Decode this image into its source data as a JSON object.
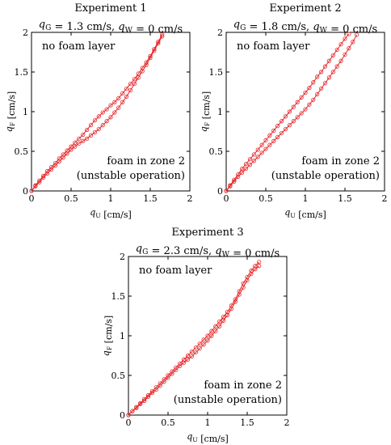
{
  "chart_data": [
    {
      "type": "line",
      "title": "Experiment 1",
      "subtitle": "q_G = 1.3 cm/s, q_W = 0 cm/s",
      "xlabel": "q_U [cm/s]",
      "ylabel": "q_F [cm/s]",
      "xlim": [
        0,
        2
      ],
      "ylim": [
        0,
        2
      ],
      "xticks": [
        "0",
        "0.5",
        "1",
        "1.5",
        "2"
      ],
      "yticks": [
        "0",
        "0.5",
        "1",
        "1.5",
        "2"
      ],
      "annotations": {
        "top": "no foam layer",
        "bottom_line1": "foam in zone 2",
        "bottom_line2": "(unstable operation)"
      },
      "series": [
        {
          "x": [
            0,
            0.05,
            0.1,
            0.15,
            0.2,
            0.25,
            0.3,
            0.35,
            0.4,
            0.45,
            0.5,
            0.55,
            0.6,
            0.65,
            0.7,
            0.75,
            0.8,
            0.85,
            0.9,
            0.95,
            1.0,
            1.05,
            1.1,
            1.15,
            1.2,
            1.25,
            1.3,
            1.35,
            1.4,
            1.45,
            1.5,
            1.55,
            1.6,
            1.65
          ],
          "y": [
            0,
            0.07,
            0.13,
            0.19,
            0.25,
            0.3,
            0.35,
            0.41,
            0.46,
            0.51,
            0.56,
            0.61,
            0.66,
            0.71,
            0.77,
            0.83,
            0.89,
            0.94,
            0.99,
            1.03,
            1.08,
            1.12,
            1.17,
            1.23,
            1.29,
            1.35,
            1.41,
            1.48,
            1.55,
            1.62,
            1.7,
            1.79,
            1.88,
            1.97
          ]
        },
        {
          "x": [
            0,
            0.05,
            0.1,
            0.15,
            0.2,
            0.25,
            0.3,
            0.35,
            0.4,
            0.45,
            0.5,
            0.55,
            0.6,
            0.65,
            0.7,
            0.75,
            0.8,
            0.85,
            0.9,
            0.95,
            1.0,
            1.05,
            1.1,
            1.15,
            1.2,
            1.25,
            1.3,
            1.35,
            1.4,
            1.45,
            1.5,
            1.55,
            1.6,
            1.65
          ],
          "y": [
            0,
            0.06,
            0.11,
            0.17,
            0.22,
            0.27,
            0.32,
            0.37,
            0.42,
            0.47,
            0.52,
            0.56,
            0.6,
            0.63,
            0.66,
            0.7,
            0.74,
            0.78,
            0.83,
            0.88,
            0.93,
            0.99,
            1.05,
            1.12,
            1.19,
            1.27,
            1.35,
            1.43,
            1.51,
            1.59,
            1.68,
            1.77,
            1.86,
            1.95
          ]
        }
      ]
    },
    {
      "type": "line",
      "title": "Experiment 2",
      "subtitle": "q_G = 1.8 cm/s, q_W = 0 cm/s",
      "xlabel": "q_U [cm/s]",
      "ylabel": "q_F [cm/s]",
      "xlim": [
        0,
        2
      ],
      "ylim": [
        0,
        2
      ],
      "xticks": [
        "0",
        "0.5",
        "1",
        "1.5",
        "2"
      ],
      "yticks": [
        "0",
        "0.5",
        "1",
        "1.5",
        "2"
      ],
      "annotations": {
        "top": "no foam layer",
        "bottom_line1": "foam in zone 2",
        "bottom_line2": "(unstable operation)"
      },
      "series": [
        {
          "x": [
            0,
            0.05,
            0.1,
            0.15,
            0.2,
            0.25,
            0.3,
            0.35,
            0.4,
            0.45,
            0.5,
            0.55,
            0.6,
            0.65,
            0.7,
            0.75,
            0.8,
            0.85,
            0.9,
            0.95,
            1.0,
            1.05,
            1.1,
            1.15,
            1.2,
            1.25,
            1.3,
            1.35,
            1.4,
            1.45,
            1.5,
            1.55
          ],
          "y": [
            0,
            0.07,
            0.14,
            0.21,
            0.28,
            0.34,
            0.4,
            0.46,
            0.52,
            0.58,
            0.64,
            0.7,
            0.76,
            0.82,
            0.88,
            0.94,
            1.0,
            1.06,
            1.12,
            1.18,
            1.24,
            1.3,
            1.37,
            1.44,
            1.5,
            1.57,
            1.64,
            1.71,
            1.78,
            1.85,
            1.92,
            1.98
          ]
        },
        {
          "x": [
            0,
            0.05,
            0.1,
            0.15,
            0.2,
            0.25,
            0.3,
            0.35,
            0.4,
            0.45,
            0.5,
            0.55,
            0.6,
            0.65,
            0.7,
            0.75,
            0.8,
            0.85,
            0.9,
            0.95,
            1.0,
            1.05,
            1.1,
            1.15,
            1.2,
            1.25,
            1.3,
            1.35,
            1.4,
            1.45,
            1.5,
            1.55,
            1.6,
            1.65
          ],
          "y": [
            0,
            0.06,
            0.12,
            0.18,
            0.23,
            0.28,
            0.33,
            0.38,
            0.43,
            0.48,
            0.53,
            0.58,
            0.63,
            0.68,
            0.73,
            0.78,
            0.83,
            0.88,
            0.93,
            0.98,
            1.03,
            1.09,
            1.15,
            1.22,
            1.29,
            1.36,
            1.43,
            1.5,
            1.57,
            1.64,
            1.72,
            1.8,
            1.88,
            1.97
          ]
        }
      ]
    },
    {
      "type": "line",
      "title": "Experiment 3",
      "subtitle": "q_G = 2.3 cm/s, q_W = 0 cm/s",
      "xlabel": "q_U [cm/s]",
      "ylabel": "q_F [cm/s]",
      "xlim": [
        0,
        2
      ],
      "ylim": [
        0,
        2
      ],
      "xticks": [
        "0",
        "0.5",
        "1",
        "1.5",
        "2"
      ],
      "yticks": [
        "0",
        "0.5",
        "1",
        "1.5",
        "2"
      ],
      "annotations": {
        "top": "no foam layer",
        "bottom_line1": "foam in zone 2",
        "bottom_line2": "(unstable operation)"
      },
      "series": [
        {
          "x": [
            0,
            0.05,
            0.1,
            0.15,
            0.2,
            0.25,
            0.3,
            0.35,
            0.4,
            0.45,
            0.5,
            0.55,
            0.6,
            0.65,
            0.7,
            0.75,
            0.8,
            0.85,
            0.9,
            0.95,
            1.0,
            1.05,
            1.1,
            1.15,
            1.2,
            1.25,
            1.3,
            1.35,
            1.4,
            1.45,
            1.5,
            1.55,
            1.6,
            1.65
          ],
          "y": [
            0,
            0.05,
            0.1,
            0.15,
            0.2,
            0.25,
            0.3,
            0.35,
            0.4,
            0.45,
            0.5,
            0.55,
            0.6,
            0.65,
            0.7,
            0.75,
            0.8,
            0.85,
            0.9,
            0.95,
            1.0,
            1.06,
            1.12,
            1.18,
            1.24,
            1.3,
            1.38,
            1.46,
            1.56,
            1.66,
            1.74,
            1.82,
            1.88,
            1.93
          ]
        },
        {
          "x": [
            0,
            0.05,
            0.1,
            0.15,
            0.2,
            0.25,
            0.3,
            0.35,
            0.4,
            0.45,
            0.5,
            0.55,
            0.6,
            0.65,
            0.7,
            0.75,
            0.8,
            0.85,
            0.9,
            0.95,
            1.0,
            1.05,
            1.1,
            1.15,
            1.2,
            1.25,
            1.3,
            1.35,
            1.4,
            1.45,
            1.5,
            1.55,
            1.6,
            1.65
          ],
          "y": [
            0,
            0.05,
            0.09,
            0.14,
            0.18,
            0.23,
            0.28,
            0.32,
            0.37,
            0.42,
            0.47,
            0.52,
            0.57,
            0.62,
            0.66,
            0.7,
            0.74,
            0.79,
            0.84,
            0.89,
            0.94,
            1.0,
            1.06,
            1.12,
            1.19,
            1.26,
            1.34,
            1.43,
            1.52,
            1.61,
            1.7,
            1.78,
            1.84,
            1.88
          ]
        }
      ]
    }
  ]
}
